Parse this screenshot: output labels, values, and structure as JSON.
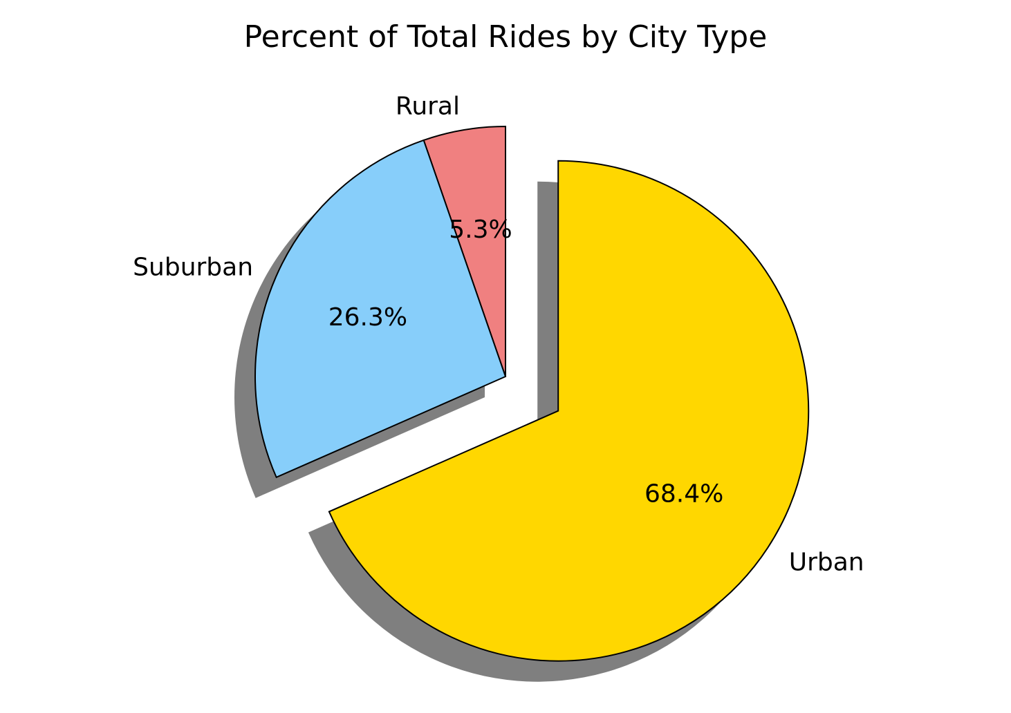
{
  "chart_data": {
    "type": "pie",
    "title": "Percent of Total Rides by City Type",
    "slices": [
      {
        "label": "Rural",
        "value": 5.3,
        "pct_text": "5.3%",
        "color": "#F08080",
        "explode": false
      },
      {
        "label": "Suburban",
        "value": 26.3,
        "pct_text": "26.3%",
        "color": "#87CEFA",
        "explode": false
      },
      {
        "label": "Urban",
        "value": 68.4,
        "pct_text": "68.4%",
        "color": "#FFD700",
        "explode": true
      }
    ],
    "start_angle": "90 degrees (top), counterclockwise",
    "shadow": true,
    "edge_color": "#000000"
  }
}
